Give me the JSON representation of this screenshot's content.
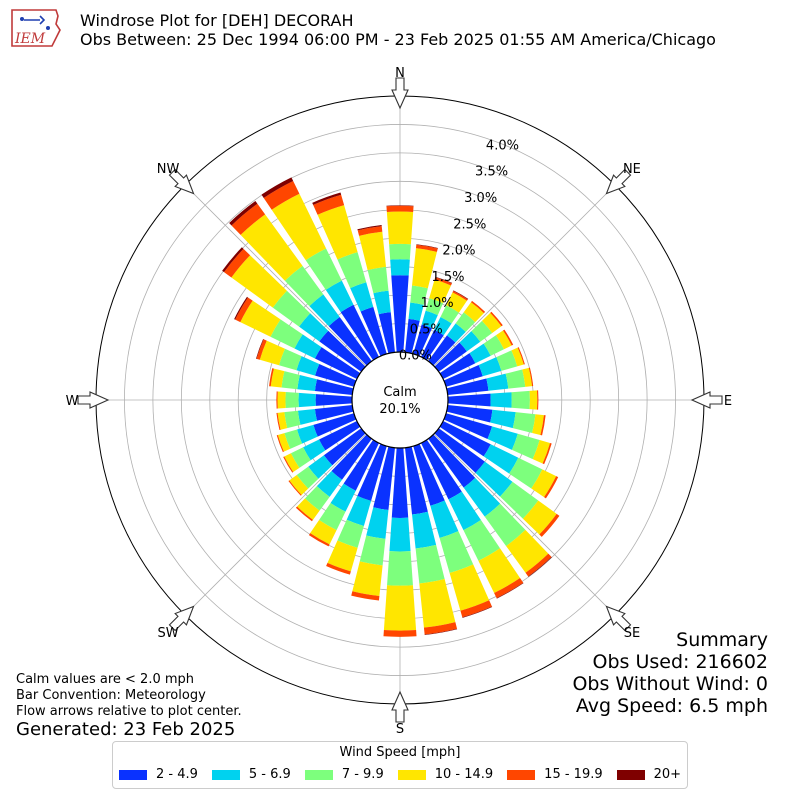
{
  "header": {
    "logo_text": "IEM",
    "title": "Windrose Plot for [DEH] DECORAH",
    "subtitle": "Obs Between: 25 Dec 1994 06:00 PM - 23 Feb 2025 01:55 AM America/Chicago"
  },
  "summary": {
    "title": "Summary",
    "obs_used": "Obs Used: 216602",
    "obs_without_wind": "Obs Without Wind: 0",
    "avg_speed": "Avg Speed: 6.5 mph"
  },
  "notes": {
    "calm_note": "Calm values are < 2.0 mph",
    "bar_convention": "Bar Convention: Meteorology",
    "flow_arrows": "Flow arrows relative to plot center.",
    "generated": "Generated: 23 Feb 2025"
  },
  "legend": {
    "title": "Wind Speed [mph]",
    "items": [
      {
        "label": "2 - 4.9",
        "color": "#0a32ff"
      },
      {
        "label": "5 - 6.9",
        "color": "#00d2ef"
      },
      {
        "label": "7 - 9.9",
        "color": "#7dff7d"
      },
      {
        "label": "10 - 14.9",
        "color": "#ffe600"
      },
      {
        "label": "15 - 19.9",
        "color": "#ff4600"
      },
      {
        "label": "20+",
        "color": "#7f0000"
      }
    ]
  },
  "chart_data": {
    "type": "windrose",
    "calm_label": "Calm",
    "calm_value": "20.1%",
    "radial_ticks": [
      "0.0%",
      "0.5%",
      "1.0%",
      "1.5%",
      "2.0%",
      "2.5%",
      "3.0%",
      "3.5%",
      "4.0%"
    ],
    "radial_tick_values": [
      0,
      0.5,
      1.0,
      1.5,
      2.0,
      2.5,
      3.0,
      3.5,
      4.0
    ],
    "rmax": 4.5,
    "compass_labels": [
      {
        "label": "N",
        "deg": 0
      },
      {
        "label": "NE",
        "deg": 45
      },
      {
        "label": "E",
        "deg": 90
      },
      {
        "label": "SE",
        "deg": 135
      },
      {
        "label": "S",
        "deg": 180
      },
      {
        "label": "SW",
        "deg": 225
      },
      {
        "label": "W",
        "deg": 270
      },
      {
        "label": "NW",
        "deg": 315
      }
    ],
    "directions_deg": [
      0,
      10,
      20,
      30,
      40,
      50,
      60,
      70,
      80,
      90,
      100,
      110,
      120,
      130,
      140,
      150,
      160,
      170,
      180,
      190,
      200,
      210,
      220,
      230,
      240,
      250,
      260,
      270,
      280,
      290,
      300,
      310,
      320,
      330,
      340,
      350
    ],
    "series": [
      {
        "name": "2 - 4.9",
        "values": [
          1.35,
          0.59,
          0.54,
          0.53,
          0.56,
          0.61,
          0.63,
          0.67,
          0.72,
          0.75,
          0.79,
          0.84,
          0.93,
          1.0,
          1.06,
          1.1,
          1.09,
          1.18,
          1.23,
          1.1,
          1.0,
          0.93,
          0.89,
          0.81,
          0.74,
          0.74,
          0.66,
          0.64,
          0.66,
          0.71,
          0.82,
          0.91,
          0.96,
          1.02,
          0.86,
          0.71
        ]
      },
      {
        "name": "5 - 6.9",
        "values": [
          0.28,
          0.29,
          0.25,
          0.25,
          0.26,
          0.29,
          0.3,
          0.34,
          0.35,
          0.37,
          0.41,
          0.47,
          0.54,
          0.6,
          0.63,
          0.6,
          0.59,
          0.6,
          0.59,
          0.51,
          0.46,
          0.41,
          0.37,
          0.34,
          0.31,
          0.3,
          0.3,
          0.3,
          0.31,
          0.34,
          0.4,
          0.44,
          0.49,
          0.47,
          0.45,
          0.38
        ]
      },
      {
        "name": "7 - 9.9",
        "values": [
          0.27,
          0.3,
          0.23,
          0.23,
          0.24,
          0.26,
          0.26,
          0.29,
          0.3,
          0.32,
          0.35,
          0.4,
          0.47,
          0.56,
          0.64,
          0.6,
          0.64,
          0.62,
          0.6,
          0.47,
          0.4,
          0.36,
          0.3,
          0.25,
          0.24,
          0.23,
          0.24,
          0.23,
          0.28,
          0.32,
          0.47,
          0.57,
          0.62,
          0.63,
          0.55,
          0.42
        ]
      },
      {
        "name": "10 - 14.9",
        "values": [
          0.57,
          0.66,
          0.34,
          0.25,
          0.22,
          0.2,
          0.15,
          0.12,
          0.12,
          0.13,
          0.15,
          0.19,
          0.27,
          0.4,
          0.58,
          0.63,
          0.69,
          0.78,
          0.79,
          0.54,
          0.43,
          0.28,
          0.2,
          0.16,
          0.13,
          0.12,
          0.12,
          0.14,
          0.19,
          0.35,
          0.59,
          0.9,
          1.12,
          1.07,
          0.86,
          0.62
        ]
      },
      {
        "name": "15 - 19.9",
        "values": [
          0.1,
          0.06,
          0.04,
          0.03,
          0.03,
          0.03,
          0.03,
          0.02,
          0.02,
          0.02,
          0.03,
          0.03,
          0.04,
          0.06,
          0.08,
          0.1,
          0.12,
          0.12,
          0.11,
          0.08,
          0.06,
          0.04,
          0.03,
          0.02,
          0.02,
          0.02,
          0.02,
          0.02,
          0.03,
          0.06,
          0.1,
          0.16,
          0.23,
          0.25,
          0.19,
          0.1
        ]
      },
      {
        "name": "20+",
        "values": [
          0.01,
          0.01,
          0.01,
          0.01,
          0.0,
          0.0,
          0.0,
          0.0,
          0.0,
          0.0,
          0.0,
          0.0,
          0.0,
          0.0,
          0.01,
          0.01,
          0.01,
          0.01,
          0.0,
          0.0,
          0.0,
          0.0,
          0.0,
          0.0,
          0.0,
          0.0,
          0.0,
          0.0,
          0.0,
          0.01,
          0.02,
          0.04,
          0.06,
          0.07,
          0.04,
          0.02
        ]
      }
    ],
    "legend_placement": "bottom-center",
    "grid": true
  }
}
